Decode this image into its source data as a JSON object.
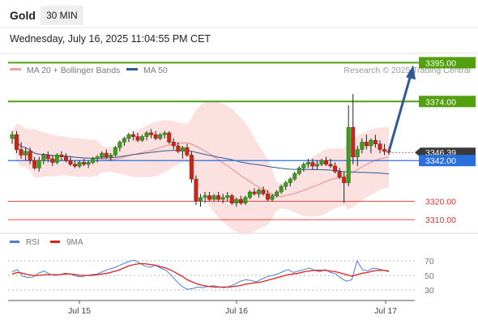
{
  "header": {
    "title": "Gold",
    "timeframe": "30 MIN",
    "timestamp": "Wednesday, July 16, 2025 11:04:55 PM CET"
  },
  "legend": {
    "items": [
      {
        "label": "MA 20 + Bollinger Bands",
        "color": "#f4a0a0"
      },
      {
        "label": "MA 50",
        "color": "#2f5a94"
      }
    ],
    "credit": "Research © 2025 Trading Central"
  },
  "rsi_legend": {
    "items": [
      {
        "label": "RSI",
        "color": "#4a7fd0"
      },
      {
        "label": "9MA",
        "color": "#e02020"
      }
    ]
  },
  "chart_data": [
    {
      "type": "candlestick",
      "instrument": "Gold",
      "interval": "30 MIN",
      "x_labels": [
        "Jul 15",
        "Jul 16",
        "Jul 17"
      ],
      "ylim": [
        3300,
        3400
      ],
      "levels": [
        {
          "value": 3395.0,
          "label": "3395.00",
          "style": "resistance",
          "color": "#52a010"
        },
        {
          "value": 3374.0,
          "label": "3374.00",
          "style": "resistance",
          "color": "#52a010"
        },
        {
          "value": 3346.39,
          "label": "3346.39",
          "style": "last",
          "color": "#3a3a3a"
        },
        {
          "value": 3342.0,
          "label": "3342.00",
          "style": "pivot",
          "color": "#2a6fe0"
        },
        {
          "value": 3320.0,
          "label": "3320.00",
          "style": "support",
          "color": "#e03030"
        },
        {
          "value": 3310.0,
          "label": "3310.00",
          "style": "support",
          "color": "#e03030"
        }
      ],
      "forecast_arrow": {
        "from": 3347,
        "to": 3395,
        "color": "#2f5a94"
      },
      "ohlc": [
        [
          3354,
          3358,
          3351,
          3356
        ],
        [
          3356,
          3358,
          3346,
          3348
        ],
        [
          3348,
          3352,
          3343,
          3345
        ],
        [
          3345,
          3349,
          3342,
          3347
        ],
        [
          3347,
          3349,
          3340,
          3342
        ],
        [
          3342,
          3344,
          3337,
          3338
        ],
        [
          3338,
          3344,
          3336,
          3342
        ],
        [
          3342,
          3346,
          3340,
          3345
        ],
        [
          3345,
          3347,
          3341,
          3343
        ],
        [
          3343,
          3345,
          3339,
          3341
        ],
        [
          3341,
          3346,
          3340,
          3345
        ],
        [
          3345,
          3347,
          3342,
          3344
        ],
        [
          3344,
          3346,
          3341,
          3342
        ],
        [
          3342,
          3344,
          3339,
          3340
        ],
        [
          3340,
          3342,
          3338,
          3339
        ],
        [
          3339,
          3342,
          3338,
          3341
        ],
        [
          3341,
          3343,
          3339,
          3340
        ],
        [
          3340,
          3342,
          3338,
          3341
        ],
        [
          3341,
          3344,
          3340,
          3343
        ],
        [
          3343,
          3345,
          3341,
          3344
        ],
        [
          3344,
          3347,
          3343,
          3346
        ],
        [
          3346,
          3348,
          3343,
          3344
        ],
        [
          3344,
          3346,
          3342,
          3345
        ],
        [
          3345,
          3350,
          3344,
          3349
        ],
        [
          3349,
          3353,
          3347,
          3352
        ],
        [
          3352,
          3355,
          3350,
          3354
        ],
        [
          3354,
          3357,
          3352,
          3356
        ],
        [
          3356,
          3358,
          3353,
          3355
        ],
        [
          3355,
          3357,
          3352,
          3353
        ],
        [
          3353,
          3356,
          3352,
          3355
        ],
        [
          3355,
          3358,
          3353,
          3357
        ],
        [
          3357,
          3359,
          3354,
          3356
        ],
        [
          3356,
          3358,
          3353,
          3354
        ],
        [
          3354,
          3357,
          3353,
          3356
        ],
        [
          3356,
          3358,
          3354,
          3357
        ],
        [
          3357,
          3358,
          3351,
          3352
        ],
        [
          3352,
          3354,
          3348,
          3350
        ],
        [
          3350,
          3352,
          3346,
          3347
        ],
        [
          3347,
          3350,
          3343,
          3349
        ],
        [
          3349,
          3351,
          3344,
          3345
        ],
        [
          3345,
          3347,
          3330,
          3332
        ],
        [
          3332,
          3334,
          3318,
          3320
        ],
        [
          3320,
          3324,
          3317,
          3322
        ],
        [
          3322,
          3325,
          3319,
          3323
        ],
        [
          3323,
          3325,
          3320,
          3321
        ],
        [
          3321,
          3324,
          3320,
          3323
        ],
        [
          3323,
          3325,
          3320,
          3321
        ],
        [
          3321,
          3324,
          3319,
          3322
        ],
        [
          3322,
          3325,
          3320,
          3323
        ],
        [
          3323,
          3324,
          3318,
          3319
        ],
        [
          3319,
          3322,
          3317,
          3321
        ],
        [
          3321,
          3323,
          3318,
          3319
        ],
        [
          3319,
          3323,
          3318,
          3322
        ],
        [
          3322,
          3326,
          3321,
          3325
        ],
        [
          3325,
          3327,
          3323,
          3324
        ],
        [
          3324,
          3327,
          3322,
          3326
        ],
        [
          3326,
          3328,
          3323,
          3324
        ],
        [
          3324,
          3326,
          3320,
          3321
        ],
        [
          3321,
          3324,
          3320,
          3323
        ],
        [
          3323,
          3326,
          3322,
          3325
        ],
        [
          3325,
          3329,
          3324,
          3328
        ],
        [
          3328,
          3331,
          3326,
          3330
        ],
        [
          3330,
          3333,
          3328,
          3332
        ],
        [
          3332,
          3336,
          3331,
          3335
        ],
        [
          3335,
          3339,
          3334,
          3338
        ],
        [
          3338,
          3341,
          3336,
          3340
        ],
        [
          3340,
          3343,
          3338,
          3341
        ],
        [
          3341,
          3343,
          3337,
          3339
        ],
        [
          3339,
          3342,
          3337,
          3340
        ],
        [
          3340,
          3343,
          3339,
          3342
        ],
        [
          3342,
          3344,
          3339,
          3340
        ],
        [
          3340,
          3343,
          3338,
          3339
        ],
        [
          3339,
          3341,
          3335,
          3336
        ],
        [
          3336,
          3338,
          3332,
          3333
        ],
        [
          3333,
          3336,
          3319,
          3330
        ],
        [
          3330,
          3372,
          3328,
          3360
        ],
        [
          3360,
          3378,
          3340,
          3344
        ],
        [
          3344,
          3350,
          3339,
          3348
        ],
        [
          3348,
          3354,
          3346,
          3352
        ],
        [
          3352,
          3356,
          3348,
          3350
        ],
        [
          3350,
          3354,
          3346,
          3353
        ],
        [
          3353,
          3356,
          3349,
          3351
        ],
        [
          3351,
          3353,
          3346,
          3348
        ],
        [
          3348,
          3351,
          3345,
          3347
        ],
        [
          3347,
          3349,
          3345,
          3346.39
        ]
      ]
    },
    {
      "type": "line",
      "title": "RSI",
      "series": [
        {
          "name": "RSI",
          "color": "#4a7fd0",
          "values": [
            55,
            58,
            49,
            47,
            48,
            53,
            56,
            52,
            50,
            51,
            53,
            52,
            49,
            48,
            50,
            51,
            52,
            55,
            58,
            60,
            63,
            66,
            69,
            71,
            67,
            63,
            61,
            64,
            60,
            57,
            50,
            42,
            35,
            31,
            32,
            34,
            33,
            35,
            36,
            34,
            33,
            35,
            38,
            42,
            44,
            43,
            41,
            45,
            48,
            50,
            52,
            55,
            58,
            54,
            56,
            58,
            60,
            57,
            55,
            58,
            54,
            52,
            46,
            42,
            44,
            70,
            58,
            56,
            60,
            59,
            57,
            55
          ]
        },
        {
          "name": "9MA",
          "color": "#e02020",
          "values": [
            52,
            54,
            53,
            51,
            50,
            50,
            51,
            51,
            51,
            51,
            52,
            52,
            51,
            50,
            50,
            50,
            51,
            52,
            53,
            55,
            57,
            60,
            63,
            65,
            66,
            66,
            65,
            64,
            62,
            60,
            57,
            53,
            49,
            44,
            41,
            38,
            36,
            35,
            34,
            34,
            34,
            34,
            35,
            36,
            38,
            39,
            40,
            41,
            43,
            45,
            47,
            49,
            51,
            52,
            53,
            55,
            56,
            57,
            57,
            57,
            56,
            55,
            53,
            51,
            49,
            51,
            53,
            54,
            56,
            57,
            57,
            56
          ]
        }
      ],
      "yticks": [
        30,
        50,
        70
      ],
      "ylim": [
        20,
        80
      ]
    }
  ]
}
